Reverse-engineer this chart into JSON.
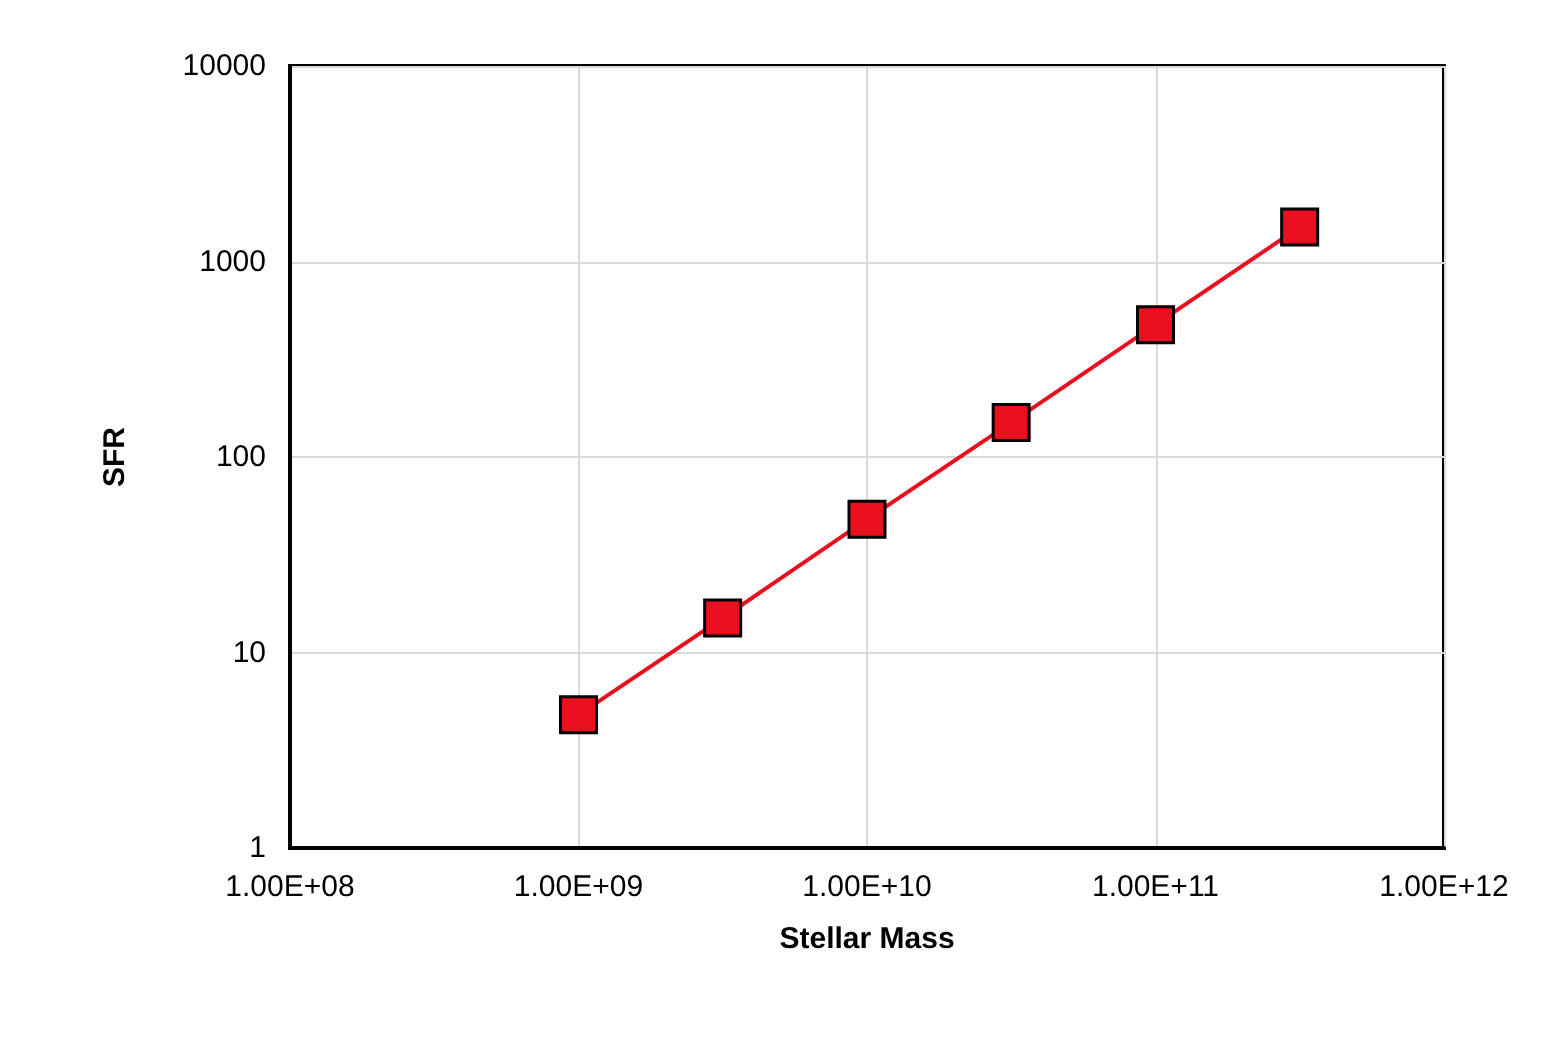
{
  "chart_data": {
    "type": "line",
    "xlabel": "Stellar Mass",
    "ylabel": "SFR",
    "x": [
      1000000000.0,
      3160000000.0,
      10000000000.0,
      31600000000.0,
      100000000000.0,
      316000000000.0
    ],
    "series": [
      {
        "color": "#e8101e",
        "values": [
          4.8,
          15,
          48,
          150,
          475,
          1500
        ]
      }
    ],
    "marker": "square",
    "line_style": "solid",
    "log": "xy",
    "grid": true,
    "xlim": [
      100000000.0,
      1000000000000.0
    ],
    "xticks": [
      {
        "value": 100000000.0,
        "label": "1.00E+08"
      },
      {
        "value": 1000000000.0,
        "label": "1.00E+09"
      },
      {
        "value": 10000000000.0,
        "label": "1.00E+10"
      },
      {
        "value": 100000000000.0,
        "label": "1.00E+11"
      },
      {
        "value": 1000000000000.0,
        "label": "1.00E+12"
      }
    ],
    "ylim": [
      1,
      10000
    ],
    "yticks": [
      1,
      10,
      100,
      1000,
      10000
    ]
  }
}
